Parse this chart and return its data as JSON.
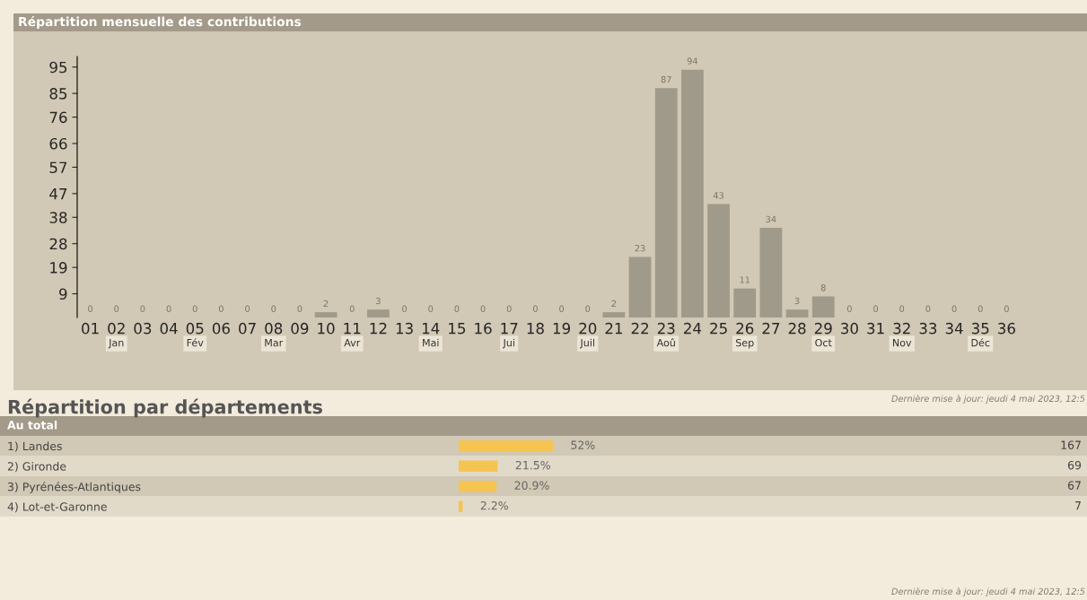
{
  "chart_data": [
    {
      "type": "bar",
      "title": "Répartition mensuelle des contributions",
      "categories": [
        "01",
        "02",
        "03",
        "04",
        "05",
        "06",
        "07",
        "08",
        "09",
        "10",
        "11",
        "12",
        "13",
        "14",
        "15",
        "16",
        "17",
        "18",
        "19",
        "20",
        "21",
        "22",
        "23",
        "24",
        "25",
        "26",
        "27",
        "28",
        "29",
        "30",
        "31",
        "32",
        "33",
        "34",
        "35",
        "36"
      ],
      "values": [
        0,
        0,
        0,
        0,
        0,
        0,
        0,
        0,
        0,
        2,
        0,
        3,
        0,
        0,
        0,
        0,
        0,
        0,
        0,
        0,
        2,
        23,
        87,
        94,
        43,
        11,
        34,
        3,
        8,
        0,
        0,
        0,
        0,
        0,
        0,
        0
      ],
      "color": "#a09a8a",
      "data_labels": true,
      "ylim": [
        0,
        99
      ],
      "yticks": [
        9,
        19,
        28,
        38,
        47,
        57,
        66,
        76,
        85,
        95
      ],
      "grid": false,
      "legend": false,
      "annotations": [
        "Jan",
        "Fév",
        "Mar",
        "Avr",
        "Mai",
        "Jui",
        "Juil",
        "Aoû",
        "Sep",
        "Oct",
        "Nov",
        "Déc",
        "Dernière mise à jour: jeudi 4 mai 2023, 12:5"
      ]
    },
    {
      "type": "bar",
      "orientation": "horizontal",
      "title": "Répartition par départements",
      "subtitle": "Au total",
      "categories": [
        "1) Landes",
        "2) Gironde",
        "3) Pyrénées-Atlantiques",
        "4) Lot-et-Garonne"
      ],
      "values": [
        52,
        21.5,
        20.9,
        2.2
      ],
      "value_labels": [
        "52%",
        "21.5%",
        "20.9%",
        "2.2%"
      ],
      "color": "#f5c451",
      "legend": false,
      "grid": false,
      "annotations": [
        "167",
        "69",
        "67",
        "7",
        "Dernière mise à jour: jeudi 4 mai 2023, 12:5"
      ]
    }
  ]
}
